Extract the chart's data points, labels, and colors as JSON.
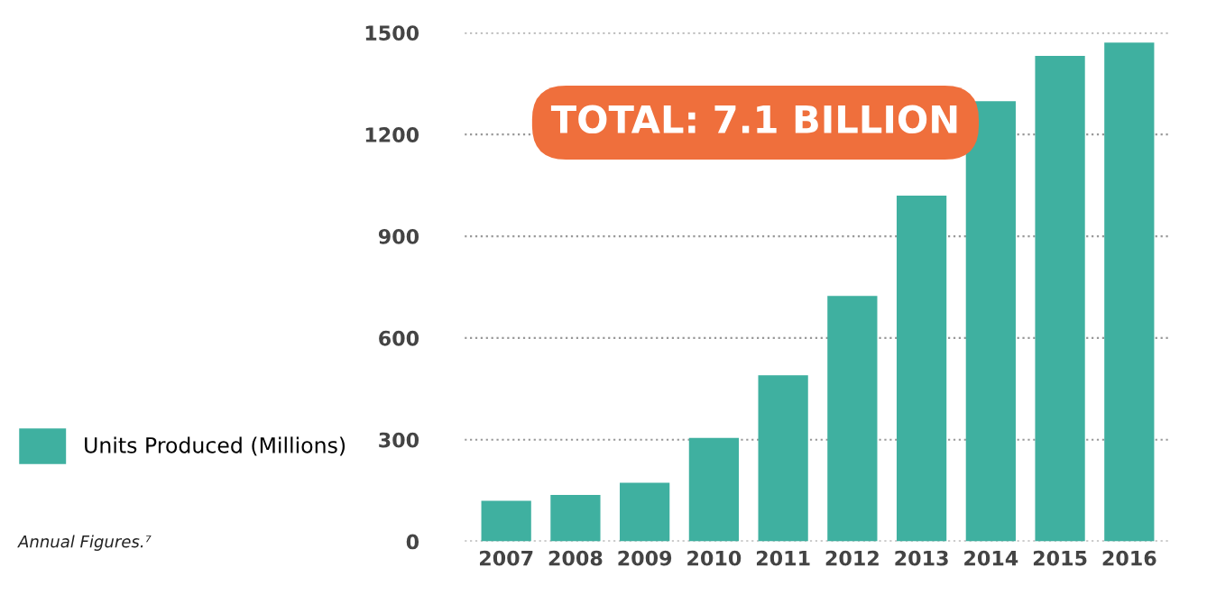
{
  "chart_data": {
    "type": "bar",
    "categories": [
      "2007",
      "2008",
      "2009",
      "2010",
      "2011",
      "2012",
      "2013",
      "2014",
      "2015",
      "2016"
    ],
    "series": [
      {
        "name": "Units Produced (Millions)",
        "color": "#3fb0a0",
        "values": [
          120,
          137,
          173,
          305,
          490,
          724,
          1020,
          1298,
          1432,
          1471
        ]
      }
    ],
    "ylim": [
      0,
      1500
    ],
    "yticks": [
      0,
      300,
      600,
      900,
      1200,
      1500
    ],
    "grid": "y",
    "legend": "left",
    "annotations": [
      "TOTAL: 7.1 BILLION",
      "Annual Figures.⁷"
    ]
  }
}
